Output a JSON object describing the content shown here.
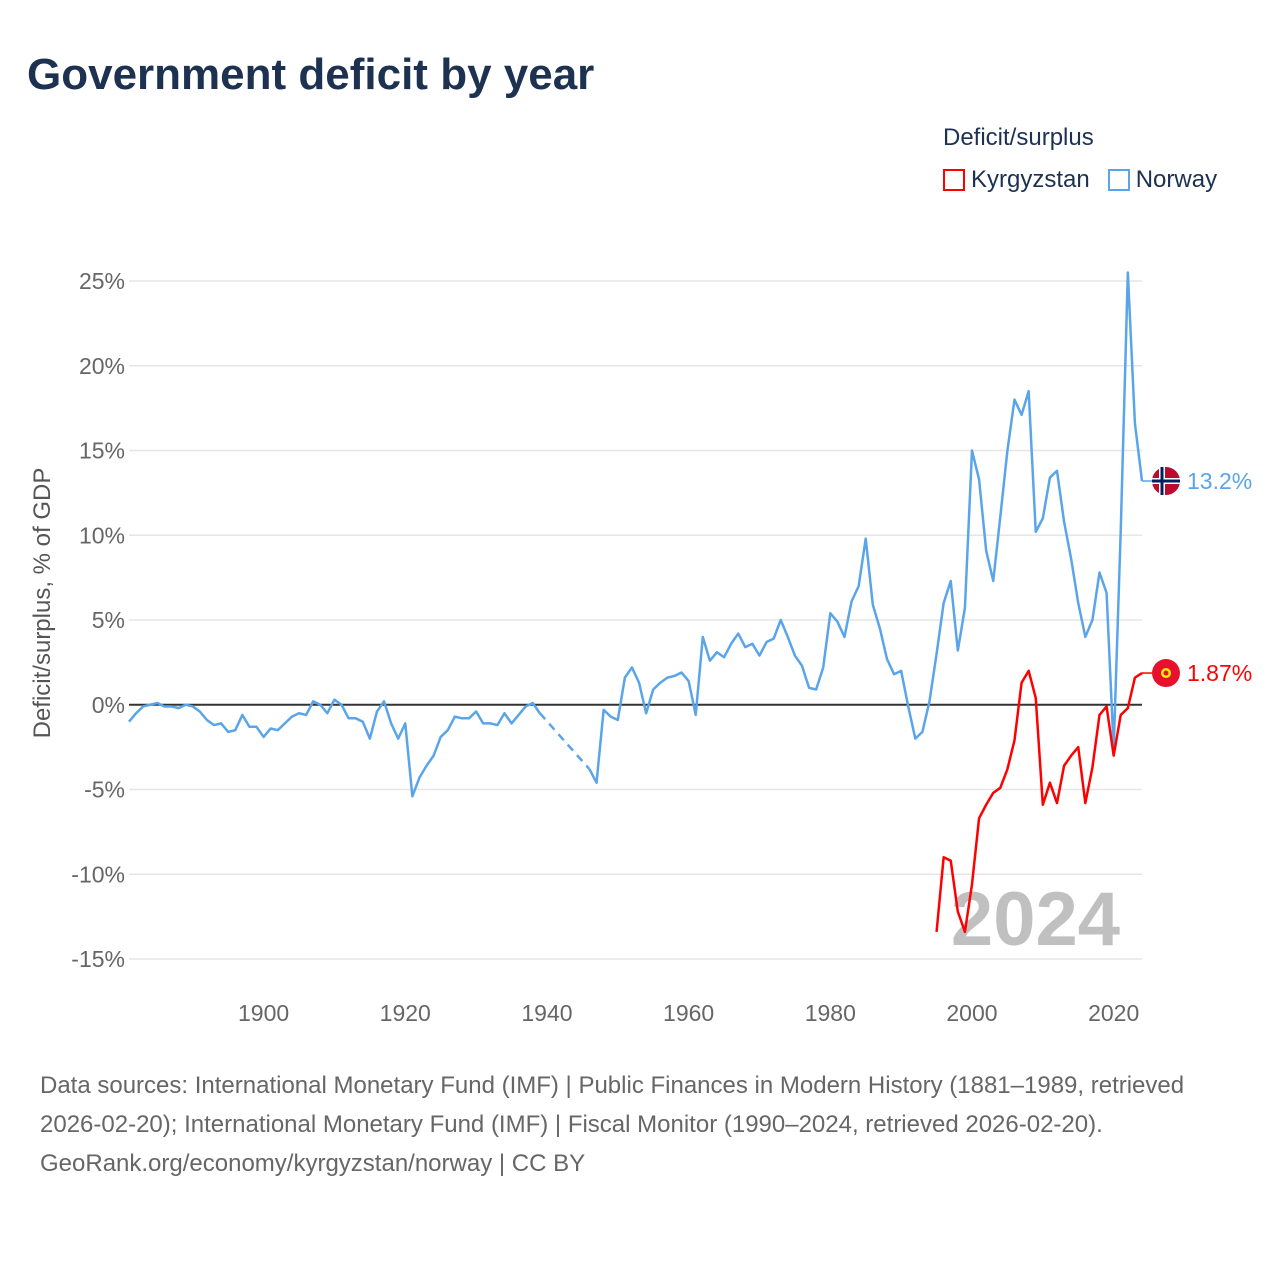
{
  "title": "Government deficit by year",
  "legend": {
    "title": "Deficit/surplus",
    "items": [
      {
        "name": "Kyrgyzstan",
        "color": "#ff0000"
      },
      {
        "name": "Norway",
        "color": "#5aa5ea"
      }
    ]
  },
  "chart_data": {
    "type": "line",
    "title": "Government deficit by year",
    "ylabel": "Deficit/surplus, % of GDP",
    "xlabel": "",
    "xlim": [
      1881,
      2024
    ],
    "ylim": [
      -15,
      25
    ],
    "yticks": [
      -15,
      -10,
      -5,
      0,
      5,
      10,
      15,
      20,
      25
    ],
    "ytick_labels": [
      "-15%",
      "-10%",
      "-5%",
      "0%",
      "5%",
      "10%",
      "15%",
      "20%",
      "25%"
    ],
    "xticks": [
      1900,
      1920,
      1940,
      1960,
      1980,
      2000,
      2020
    ],
    "xtick_labels": [
      "1900",
      "1920",
      "1940",
      "1960",
      "1980",
      "2000",
      "2020"
    ],
    "grid": true,
    "legend_position": "top-right",
    "year_watermark": "2024",
    "series": [
      {
        "name": "Norway",
        "color": "#5aa5ea",
        "end_label": "13.2%",
        "flag": "norway-flag",
        "start_year": 1881,
        "values": [
          -1.0,
          -0.5,
          -0.1,
          0,
          0.1,
          -0.1,
          -0.1,
          -0.2,
          0,
          -0.1,
          -0.4,
          -0.9,
          -1.2,
          -1.1,
          -1.6,
          -1.5,
          -0.6,
          -1.3,
          -1.3,
          -1.9,
          -1.4,
          -1.5,
          -1.1,
          -0.7,
          -0.5,
          -0.6,
          0.2,
          0,
          -0.5,
          0.3,
          0,
          -0.8,
          -0.8,
          -1.0,
          -2.0,
          -0.4,
          0.2,
          -1.1,
          -2.0,
          -1.1,
          -5.4,
          -4.3,
          -3.6,
          -3.0,
          -1.9,
          -1.5,
          -0.7,
          -0.8,
          -0.8,
          -0.4,
          -1.1,
          -1.1,
          -1.2,
          -0.5,
          -1.1,
          -0.6,
          -0.1,
          0.1,
          -0.5,
          null,
          null,
          null,
          null,
          null,
          null,
          -3.8,
          -4.6,
          -0.3,
          -0.7,
          -0.9,
          1.6,
          2.2,
          1.3,
          -0.5,
          0.9,
          1.3,
          1.6,
          1.7,
          1.9,
          1.4,
          -0.6,
          4.0,
          2.6,
          3.1,
          2.8,
          3.6,
          4.2,
          3.4,
          3.6,
          2.9,
          3.7,
          3.9,
          5.0,
          4.0,
          2.9,
          2.3,
          1.0,
          0.9,
          2.2,
          5.4,
          4.9,
          4.0,
          6.1,
          7.0,
          9.8,
          5.9,
          4.5,
          2.7,
          1.8,
          2.0,
          -0.1,
          -2.0,
          -1.6,
          0.2,
          3.0,
          6.0,
          7.3,
          3.2,
          5.7,
          15.0,
          13.3,
          9.1,
          7.3,
          11.1,
          15.0,
          18.0,
          17.1,
          18.5,
          10.2,
          11.0,
          13.4,
          13.8,
          10.8,
          8.6,
          6.0,
          4.0,
          5.0,
          7.8,
          6.6,
          -2.6,
          10.3,
          25.5,
          16.6,
          13.2
        ]
      },
      {
        "name": "Kyrgyzstan",
        "color": "#ff0000",
        "end_label": "1.87%",
        "flag": "kyrgyzstan-flag",
        "start_year": 1995,
        "values": [
          -13.4,
          -9.0,
          -9.2,
          -12.2,
          -13.4,
          -10.6,
          -6.7,
          -5.9,
          -5.2,
          -4.9,
          -3.8,
          -2.1,
          1.3,
          2.0,
          0.4,
          -5.9,
          -4.6,
          -5.8,
          -3.6,
          -3.0,
          -2.5,
          -5.8,
          -3.7,
          -0.6,
          -0.1,
          -3.0,
          -0.6,
          -0.2,
          1.6,
          1.87
        ]
      }
    ]
  },
  "footer": {
    "sources": "Data sources: International Monetary Fund (IMF) | Public Finances in Modern History (1881–1989, retrieved 2026-02-20); International Monetary Fund (IMF) | Fiscal Monitor (1990–2024, retrieved 2026-02-20).",
    "credit": "GeoRank.org/economy/kyrgyzstan/norway | CC BY"
  }
}
